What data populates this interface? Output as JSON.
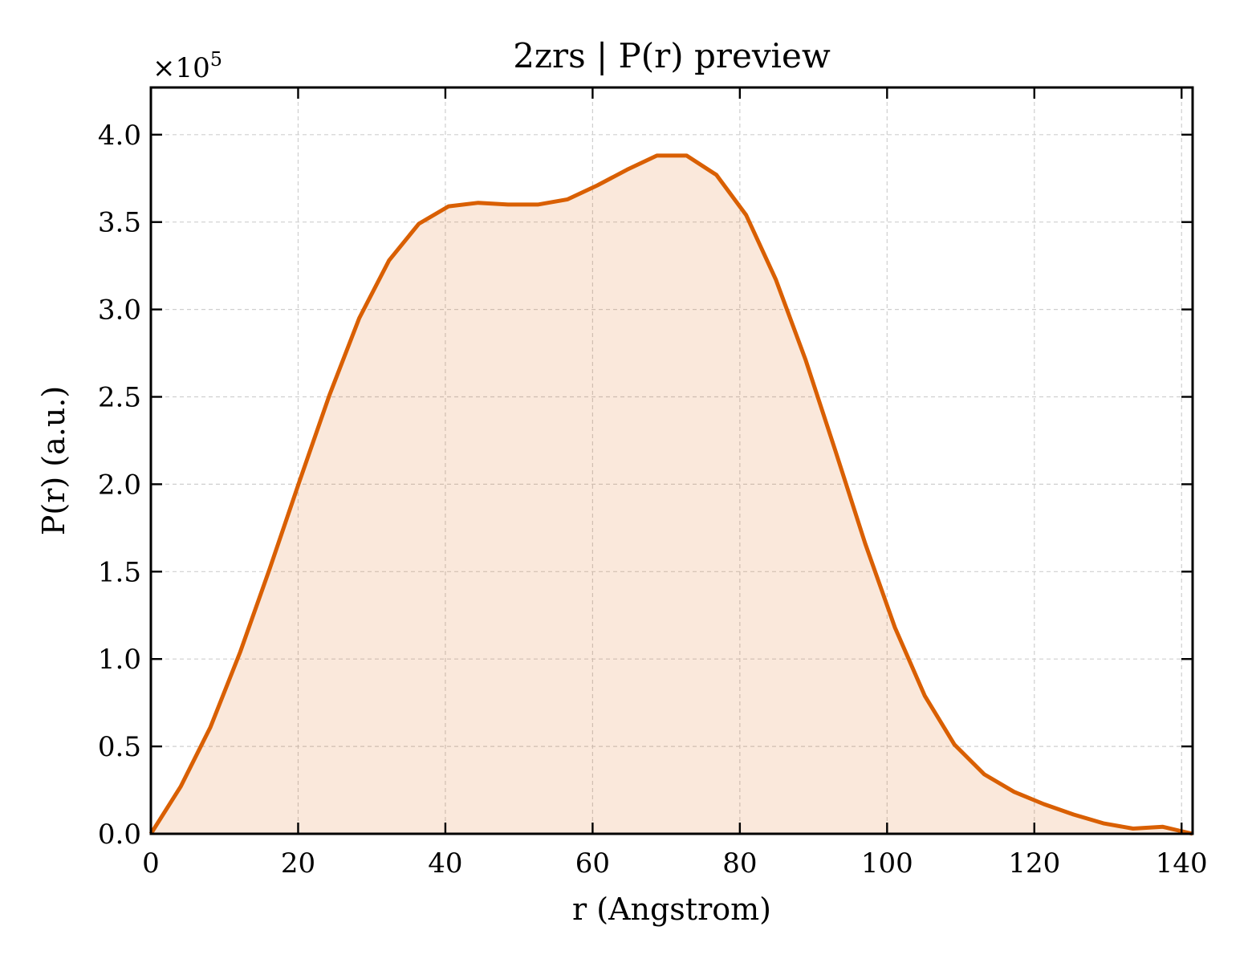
{
  "chart_data": {
    "type": "area",
    "title": "2zrs | P(r) preview",
    "xlabel": "r (Angstrom)",
    "ylabel": "P(r) (a.u.)",
    "y_offset_label": "×10",
    "y_offset_exponent": "5",
    "xlim": [
      0,
      141.5
    ],
    "ylim": [
      0,
      4.27
    ],
    "grid": true,
    "colors": {
      "line": "#d95f02",
      "fill": "#d95f02",
      "fill_opacity": 0.14
    },
    "x_ticks": [
      0,
      20,
      40,
      60,
      80,
      100,
      120,
      140
    ],
    "x_tick_labels": [
      "0",
      "20",
      "40",
      "60",
      "80",
      "100",
      "120",
      "140"
    ],
    "y_ticks": [
      0,
      0.5,
      1.0,
      1.5,
      2.0,
      2.5,
      3.0,
      3.5,
      4.0
    ],
    "y_tick_labels": [
      "0.0",
      "0.5",
      "1.0",
      "1.5",
      "2.0",
      "2.5",
      "3.0",
      "3.5",
      "4.0"
    ],
    "series": [
      {
        "x": [
          0,
          4.04,
          8.09,
          12.13,
          16.17,
          20.21,
          24.26,
          28.3,
          32.34,
          36.39,
          40.43,
          44.47,
          48.51,
          52.56,
          56.6,
          60.64,
          64.69,
          68.73,
          72.77,
          76.81,
          80.86,
          84.9,
          88.94,
          92.99,
          97.03,
          101.07,
          105.11,
          109.16,
          113.2,
          117.24,
          121.29,
          125.33,
          129.37,
          133.41,
          137.46,
          141.5
        ],
        "y": [
          0.0,
          0.27,
          0.61,
          1.04,
          1.52,
          2.02,
          2.51,
          2.95,
          3.28,
          3.49,
          3.59,
          3.61,
          3.6,
          3.6,
          3.63,
          3.71,
          3.8,
          3.88,
          3.88,
          3.77,
          3.54,
          3.17,
          2.71,
          2.19,
          1.66,
          1.18,
          0.79,
          0.51,
          0.34,
          0.24,
          0.17,
          0.11,
          0.06,
          0.03,
          0.04,
          0.0
        ]
      }
    ]
  }
}
